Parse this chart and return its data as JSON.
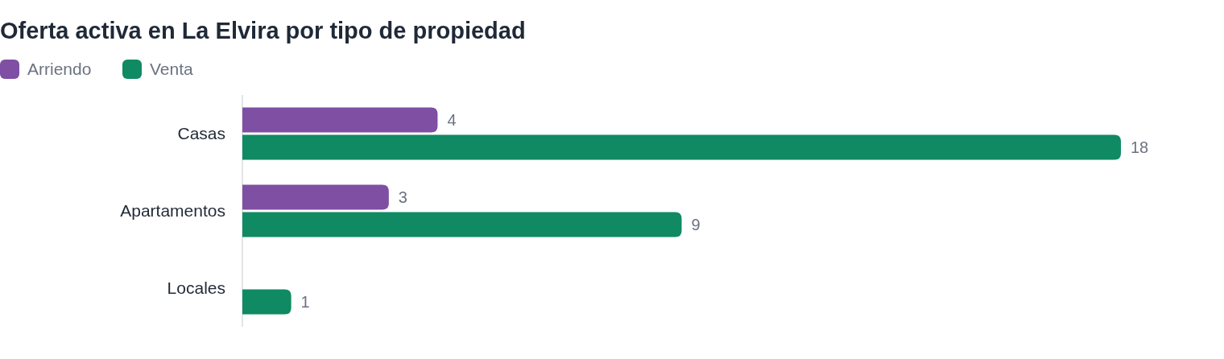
{
  "chart_data": {
    "type": "bar",
    "orientation": "horizontal",
    "title": "Oferta activa en La Elvira por tipo de propiedad",
    "categories": [
      "Casas",
      "Apartamentos",
      "Locales"
    ],
    "series": [
      {
        "name": "Arriendo",
        "color": "#7f4fa3",
        "values": [
          4,
          3,
          null
        ]
      },
      {
        "name": "Venta",
        "color": "#108a63",
        "values": [
          18,
          9,
          1
        ]
      }
    ],
    "data_labels": true,
    "legend": "top left"
  }
}
